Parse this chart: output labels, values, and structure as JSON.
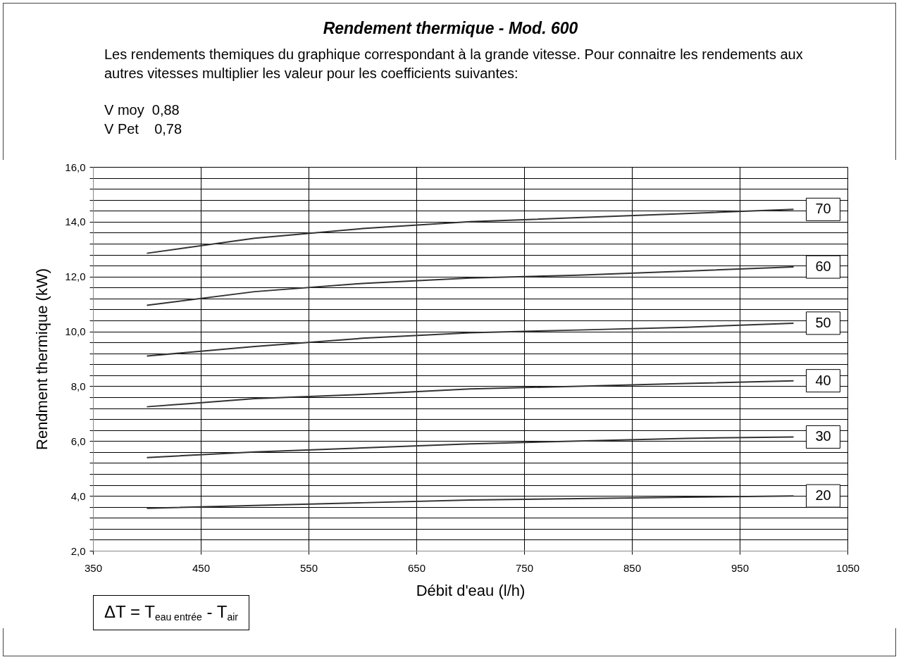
{
  "chart_data": {
    "type": "line",
    "title": "Rendement thermique - Mod. 600",
    "subtitle": "Les rendements themiques du graphique correspondant à la grande vitesse. Pour connaitre les rendements aux autres vitesses multiplier les valeur pour les coefficients suivantes:",
    "xlabel": "Débit d'eau (l/h)",
    "ylabel": "Rendment thermique (kW)",
    "annotations": [
      "V moy  0,88",
      "V Pet    0,78",
      "ΔT = T$_{eau entrée}$ - T$_{air}$"
    ],
    "x": [
      400,
      500,
      600,
      700,
      800,
      900,
      1000
    ],
    "series": [
      {
        "name": "70",
        "color": "#333333",
        "values": [
          12.85,
          13.4,
          13.75,
          14.0,
          14.15,
          14.3,
          14.45
        ]
      },
      {
        "name": "60",
        "color": "#333333",
        "values": [
          10.95,
          11.45,
          11.75,
          11.95,
          12.05,
          12.2,
          12.35
        ]
      },
      {
        "name": "50",
        "color": "#333333",
        "values": [
          9.1,
          9.45,
          9.75,
          9.95,
          10.05,
          10.15,
          10.3
        ]
      },
      {
        "name": "40",
        "color": "#333333",
        "values": [
          7.25,
          7.55,
          7.7,
          7.9,
          8.0,
          8.1,
          8.2
        ]
      },
      {
        "name": "30",
        "color": "#333333",
        "values": [
          5.4,
          5.6,
          5.75,
          5.9,
          6.0,
          6.1,
          6.15
        ]
      },
      {
        "name": "20",
        "color": "#333333",
        "values": [
          3.55,
          3.65,
          3.75,
          3.85,
          3.9,
          3.95,
          4.0
        ]
      }
    ],
    "xlim": [
      350,
      1050
    ],
    "xticks": [
      350,
      450,
      550,
      650,
      750,
      850,
      950,
      1050
    ],
    "ylim": [
      2,
      16
    ],
    "yticks": [
      {
        "value": 2,
        "label": "2,0"
      },
      {
        "value": 2.4,
        "label": null
      },
      {
        "value": 2.8,
        "label": null
      },
      {
        "value": 3.2,
        "label": null
      },
      {
        "value": 3.6,
        "label": null
      },
      {
        "value": 4,
        "label": "4,0"
      },
      {
        "value": 4.4,
        "label": null
      },
      {
        "value": 4.8,
        "label": null
      },
      {
        "value": 5.2,
        "label": null
      },
      {
        "value": 5.6,
        "label": null
      },
      {
        "value": 6,
        "label": "6,0"
      },
      {
        "value": 6.4,
        "label": null
      },
      {
        "value": 6.8,
        "label": null
      },
      {
        "value": 7.2,
        "label": null
      },
      {
        "value": 7.6,
        "label": null
      },
      {
        "value": 8,
        "label": "8,0"
      },
      {
        "value": 8.4,
        "label": null
      },
      {
        "value": 8.8,
        "label": null
      },
      {
        "value": 9.2,
        "label": null
      },
      {
        "value": 9.6,
        "label": null
      },
      {
        "value": 10,
        "label": "10,0"
      },
      {
        "value": 10.4,
        "label": null
      },
      {
        "value": 10.8,
        "label": null
      },
      {
        "value": 11.2,
        "label": null
      },
      {
        "value": 11.6,
        "label": null
      },
      {
        "value": 12,
        "label": "12,0"
      },
      {
        "value": 12.4,
        "label": null
      },
      {
        "value": 12.8,
        "label": null
      },
      {
        "value": 13.2,
        "label": null
      },
      {
        "value": 13.6,
        "label": null
      },
      {
        "value": 14,
        "label": "14,0"
      },
      {
        "value": 14.4,
        "label": null
      },
      {
        "value": 14.8,
        "label": null
      },
      {
        "value": 15.2,
        "label": null
      },
      {
        "value": 15.6,
        "label": null
      },
      {
        "value": 16,
        "label": "16,0"
      }
    ],
    "grid": true,
    "marker": "none",
    "line_style": "solid"
  }
}
